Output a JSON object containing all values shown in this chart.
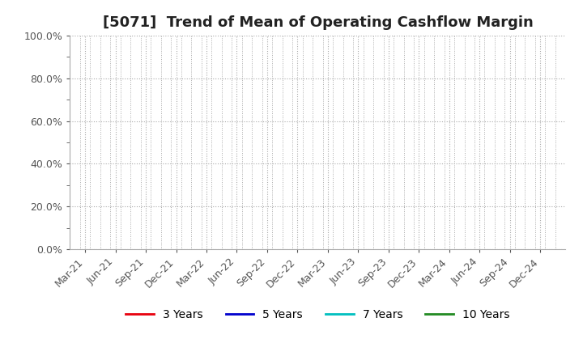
{
  "title": "[5071]  Trend of Mean of Operating Cashflow Margin",
  "ylim": [
    0.0,
    1.0
  ],
  "yticks": [
    0.0,
    0.2,
    0.4,
    0.6,
    0.8,
    1.0
  ],
  "ytick_labels": [
    "0.0%",
    "20.0%",
    "40.0%",
    "60.0%",
    "80.0%",
    "100.0%"
  ],
  "xtick_labels": [
    "Mar-21",
    "Jun-21",
    "Sep-21",
    "Dec-21",
    "Mar-22",
    "Jun-22",
    "Sep-22",
    "Dec-22",
    "Mar-23",
    "Jun-23",
    "Sep-23",
    "Dec-23",
    "Mar-24",
    "Jun-24",
    "Sep-24",
    "Dec-24"
  ],
  "n_major_ticks": 16,
  "n_minor_divisions": 3,
  "legend_entries": [
    {
      "label": "3 Years",
      "color": "#e8000d",
      "linestyle": "solid"
    },
    {
      "label": "5 Years",
      "color": "#0000cd",
      "linestyle": "solid"
    },
    {
      "label": "7 Years",
      "color": "#00bfbf",
      "linestyle": "solid"
    },
    {
      "label": "10 Years",
      "color": "#228b22",
      "linestyle": "solid"
    }
  ],
  "background_color": "#ffffff",
  "grid_color": "#aaaaaa",
  "minor_grid_color": "#cccccc",
  "title_fontsize": 13,
  "tick_fontsize": 9,
  "legend_fontsize": 10
}
